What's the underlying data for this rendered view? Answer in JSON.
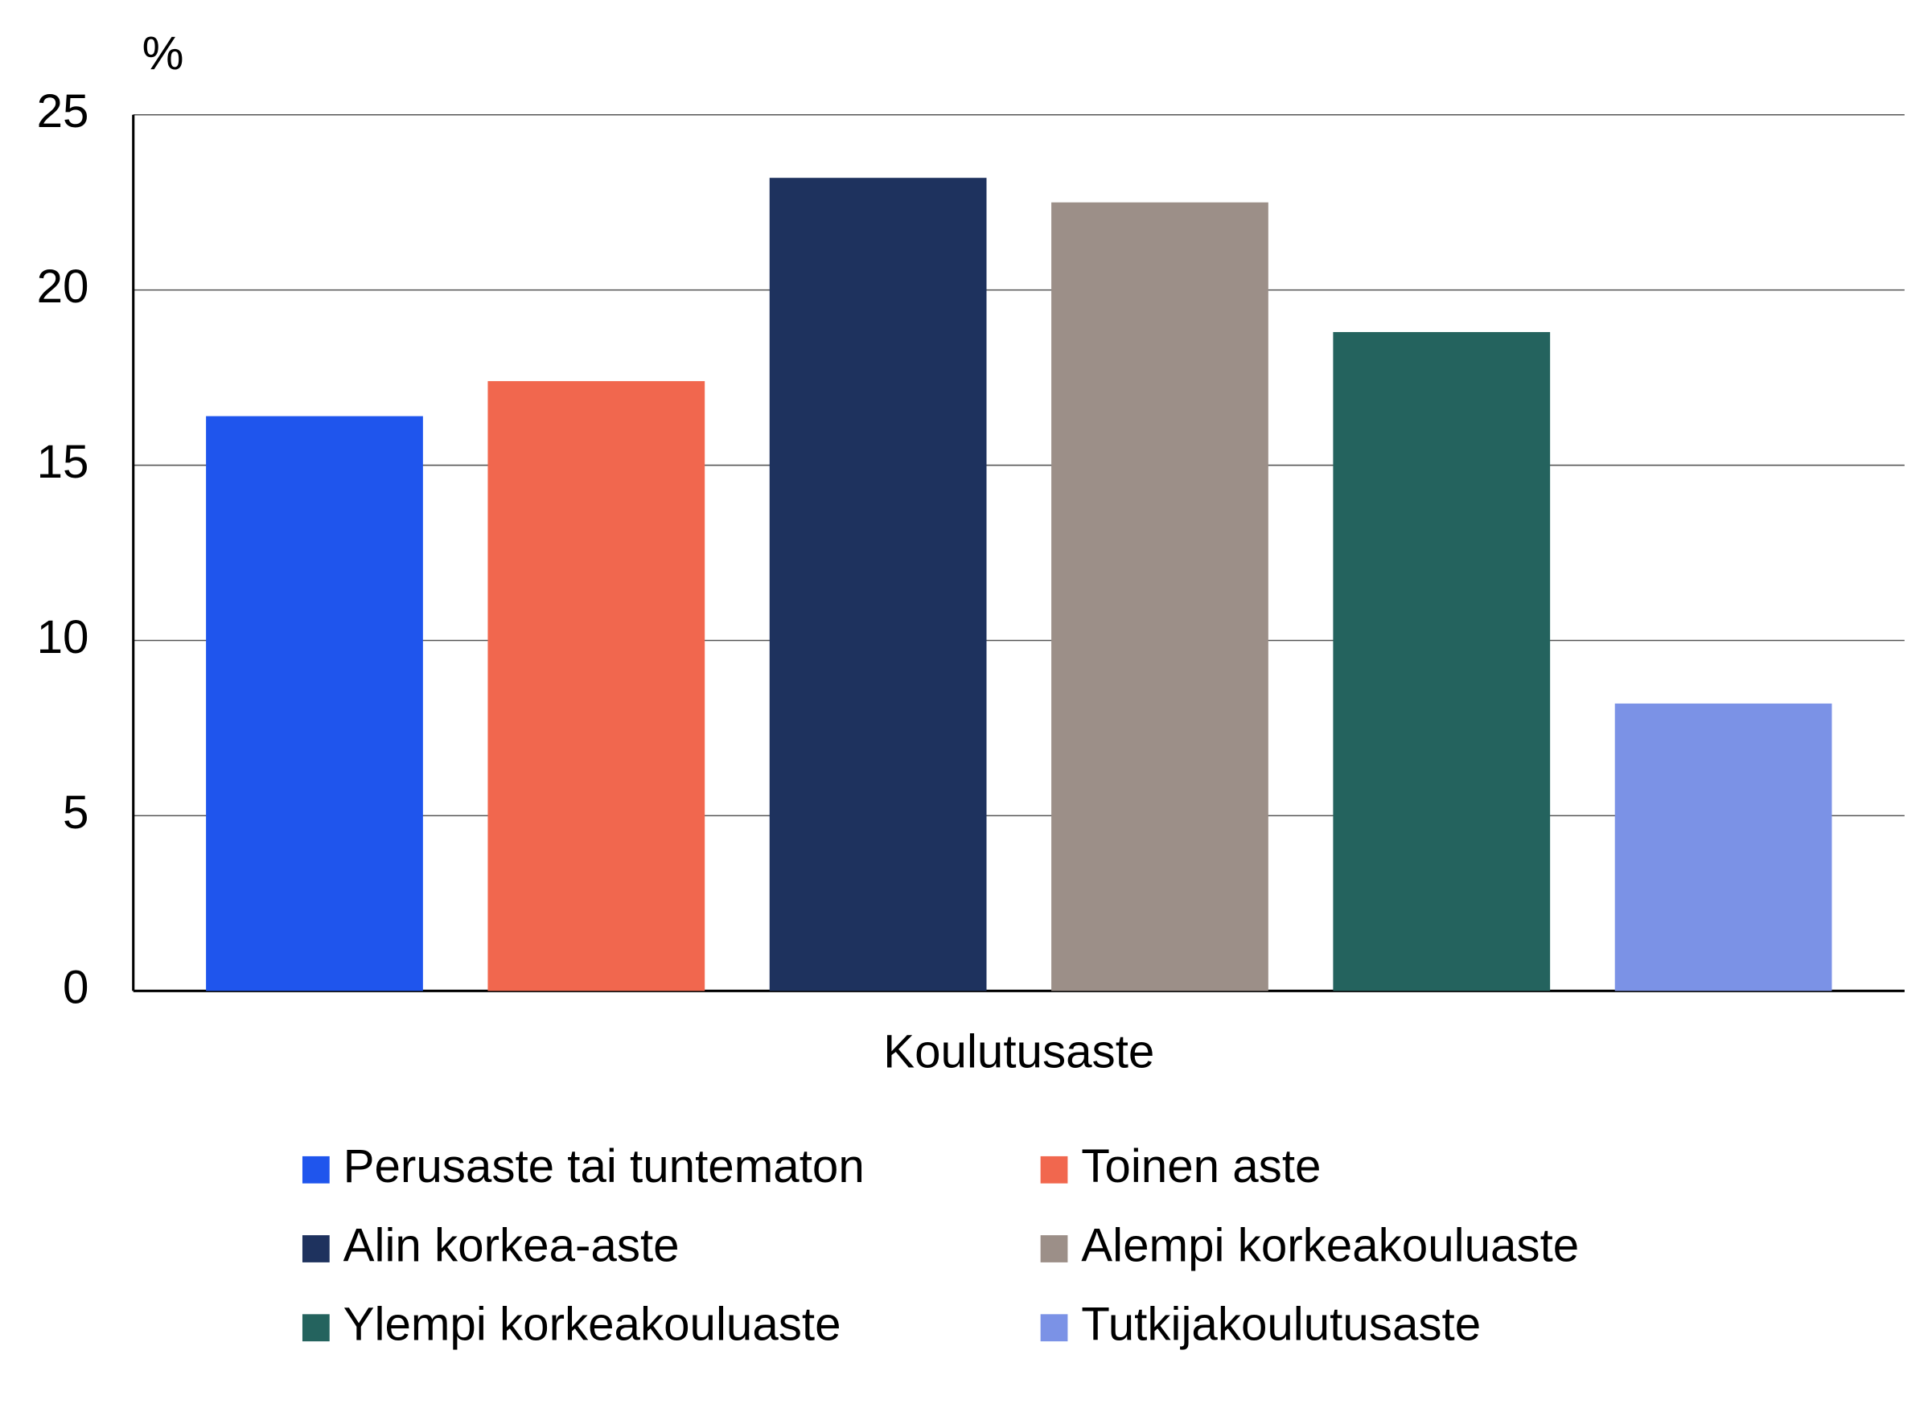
{
  "chart_data": {
    "type": "bar",
    "y_label": "%",
    "categories": [
      "Koulutusaste"
    ],
    "series": [
      {
        "name": "Perusaste tai tuntematon",
        "color": "#1f55ed",
        "values": [
          16.4
        ]
      },
      {
        "name": "Toinen aste",
        "color": "#f1674e",
        "values": [
          17.4
        ]
      },
      {
        "name": "Alin korkea-aste",
        "color": "#1e325e",
        "values": [
          23.2
        ]
      },
      {
        "name": "Alempi korkeakouluaste",
        "color": "#9c8f88",
        "values": [
          22.5
        ]
      },
      {
        "name": "Ylempi korkeakouluaste",
        "color": "#24635e",
        "values": [
          18.8
        ]
      },
      {
        "name": "Tutkijakoulutusaste",
        "color": "#7b92e6",
        "values": [
          8.2
        ]
      }
    ],
    "ylim": [
      0,
      25
    ],
    "yticks": [
      0,
      5,
      10,
      15,
      20,
      25
    ],
    "grid": true
  }
}
